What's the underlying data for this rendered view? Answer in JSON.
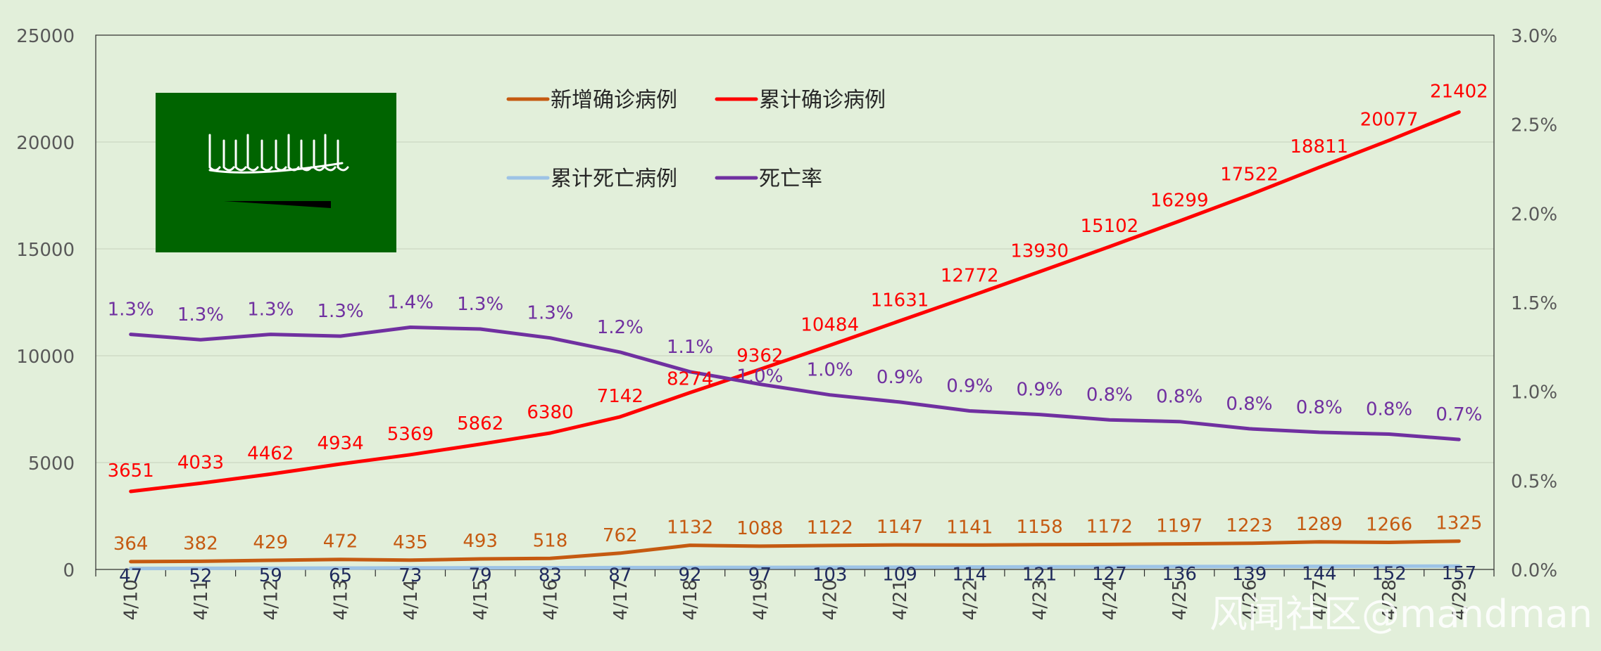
{
  "chart_data": {
    "type": "line",
    "categories": [
      "4/10",
      "4/11",
      "4/12",
      "4/13",
      "4/14",
      "4/15",
      "4/16",
      "4/17",
      "4/18",
      "4/19",
      "4/20",
      "4/21",
      "4/22",
      "4/23",
      "4/24",
      "4/25",
      "4/26",
      "4/27",
      "4/28",
      "4/29"
    ],
    "y_left": {
      "min": 0,
      "max": 25000,
      "ticks": [
        "0",
        "5000",
        "10000",
        "15000",
        "20000",
        "25000"
      ]
    },
    "y_right": {
      "min": 0,
      "max": 3.0,
      "ticks": [
        "0.0%",
        "0.5%",
        "1.0%",
        "1.5%",
        "2.0%",
        "2.5%",
        "3.0%"
      ]
    },
    "series": [
      {
        "name": "新增确诊病例",
        "color": "#c55a11",
        "axis": "left",
        "values": [
          364,
          382,
          429,
          472,
          435,
          493,
          518,
          762,
          1132,
          1088,
          1122,
          1147,
          1141,
          1158,
          1172,
          1197,
          1223,
          1289,
          1266,
          1325
        ],
        "labels": [
          "364",
          "382",
          "429",
          "472",
          "435",
          "493",
          "518",
          "762",
          "1132",
          "1088",
          "1122",
          "1147",
          "1141",
          "1158",
          "1172",
          "1197",
          "1223",
          "1289",
          "1266",
          "1325"
        ]
      },
      {
        "name": "累计确诊病例",
        "color": "#ff0000",
        "axis": "left",
        "values": [
          3651,
          4033,
          4462,
          4934,
          5369,
          5862,
          6380,
          7142,
          8274,
          9362,
          10484,
          11631,
          12772,
          13930,
          15102,
          16299,
          17522,
          18811,
          20077,
          21402
        ],
        "labels": [
          "3651",
          "4033",
          "4462",
          "4934",
          "5369",
          "5862",
          "6380",
          "7142",
          "8274",
          "9362",
          "10484",
          "11631",
          "12772",
          "13930",
          "15102",
          "16299",
          "17522",
          "18811",
          "20077",
          "21402"
        ]
      },
      {
        "name": "累计死亡病例",
        "color": "#9dc3e6",
        "axis": "left",
        "values": [
          47,
          52,
          59,
          65,
          73,
          79,
          83,
          87,
          92,
          97,
          103,
          109,
          114,
          121,
          127,
          136,
          139,
          144,
          152,
          157
        ],
        "labels": [
          "47",
          "52",
          "59",
          "65",
          "73",
          "79",
          "83",
          "87",
          "92",
          "97",
          "103",
          "109",
          "114",
          "121",
          "127",
          "136",
          "139",
          "144",
          "152",
          "157"
        ]
      },
      {
        "name": "死亡率",
        "color": "#7030a0",
        "axis": "right",
        "values": [
          1.32,
          1.29,
          1.32,
          1.31,
          1.36,
          1.35,
          1.3,
          1.22,
          1.11,
          1.04,
          0.98,
          0.94,
          0.89,
          0.87,
          0.84,
          0.83,
          0.79,
          0.77,
          0.76,
          0.73
        ],
        "labels": [
          "1.3%",
          "1.3%",
          "1.3%",
          "1.3%",
          "1.4%",
          "1.3%",
          "1.3%",
          "1.2%",
          "1.1%",
          "1.0%",
          "1.0%",
          "0.9%",
          "0.9%",
          "0.9%",
          "0.8%",
          "0.8%",
          "0.8%",
          "0.8%",
          "0.8%",
          "0.7%"
        ]
      }
    ],
    "legend": [
      "新增确诊病例",
      "累计确诊病例",
      "累计死亡病例",
      "死亡率"
    ],
    "watermark": "风闻社区@mandman",
    "flag": {
      "name": "saudi-flag",
      "color": "#006400"
    }
  }
}
